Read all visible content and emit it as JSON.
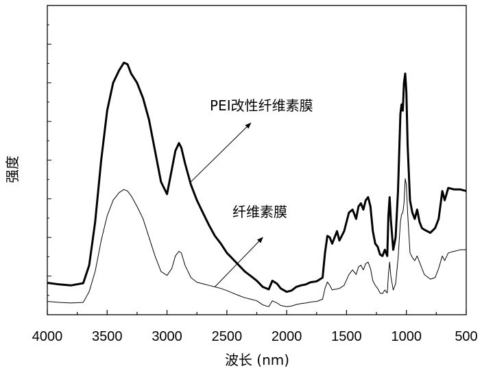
{
  "chart_data": {
    "type": "line",
    "title": "",
    "xlabel": "波长 (nm)",
    "ylabel": "强度",
    "xlim": [
      4000,
      500
    ],
    "x_reversed": true,
    "x_ticks": [
      4000,
      3500,
      3000,
      2500,
      2000,
      1500,
      1000,
      500
    ],
    "x_tick_labels": [
      "4000",
      "3500",
      "3000",
      "2500",
      "2000",
      "1500",
      "1000",
      "500"
    ],
    "ylim": [
      0,
      100
    ],
    "y_tick_labels_shown": false,
    "grid": false,
    "legend": "none",
    "series": [
      {
        "name": "PEI改性纤维素膜",
        "color": "#000000",
        "points": [
          [
            4000,
            10.3
          ],
          [
            3900,
            9.8
          ],
          [
            3800,
            9.5
          ],
          [
            3700,
            10.2
          ],
          [
            3650,
            16
          ],
          [
            3600,
            30
          ],
          [
            3550,
            50
          ],
          [
            3500,
            66
          ],
          [
            3450,
            75
          ],
          [
            3400,
            79
          ],
          [
            3360,
            81.5
          ],
          [
            3330,
            81
          ],
          [
            3300,
            78
          ],
          [
            3250,
            75
          ],
          [
            3200,
            70
          ],
          [
            3150,
            63
          ],
          [
            3100,
            53
          ],
          [
            3050,
            43
          ],
          [
            3000,
            39
          ],
          [
            2960,
            47
          ],
          [
            2930,
            53
          ],
          [
            2900,
            55.5
          ],
          [
            2880,
            54
          ],
          [
            2850,
            49
          ],
          [
            2800,
            42
          ],
          [
            2750,
            37
          ],
          [
            2700,
            33
          ],
          [
            2650,
            29
          ],
          [
            2600,
            25.5
          ],
          [
            2550,
            23
          ],
          [
            2500,
            20
          ],
          [
            2450,
            18
          ],
          [
            2400,
            16
          ],
          [
            2350,
            14
          ],
          [
            2300,
            12.5
          ],
          [
            2250,
            11
          ],
          [
            2200,
            9
          ],
          [
            2150,
            8.2
          ],
          [
            2120,
            11
          ],
          [
            2080,
            10
          ],
          [
            2050,
            8.5
          ],
          [
            2000,
            7.4
          ],
          [
            1960,
            7.8
          ],
          [
            1920,
            9
          ],
          [
            1880,
            9.5
          ],
          [
            1840,
            9.8
          ],
          [
            1800,
            10.5
          ],
          [
            1750,
            10.8
          ],
          [
            1700,
            12
          ],
          [
            1680,
            20
          ],
          [
            1660,
            25.5
          ],
          [
            1640,
            25
          ],
          [
            1620,
            23
          ],
          [
            1600,
            25
          ],
          [
            1580,
            27
          ],
          [
            1560,
            24
          ],
          [
            1520,
            27
          ],
          [
            1480,
            33
          ],
          [
            1450,
            34
          ],
          [
            1420,
            31
          ],
          [
            1400,
            35
          ],
          [
            1380,
            36
          ],
          [
            1360,
            34
          ],
          [
            1340,
            37
          ],
          [
            1320,
            38
          ],
          [
            1300,
            35
          ],
          [
            1280,
            27
          ],
          [
            1260,
            23
          ],
          [
            1240,
            22
          ],
          [
            1220,
            19.5
          ],
          [
            1200,
            19
          ],
          [
            1180,
            21
          ],
          [
            1160,
            19
          ],
          [
            1150,
            32
          ],
          [
            1140,
            38
          ],
          [
            1130,
            31
          ],
          [
            1110,
            21
          ],
          [
            1090,
            25
          ],
          [
            1070,
            40
          ],
          [
            1050,
            65
          ],
          [
            1040,
            68
          ],
          [
            1030,
            66
          ],
          [
            1020,
            75
          ],
          [
            1010,
            78
          ],
          [
            1000,
            72
          ],
          [
            990,
            55
          ],
          [
            970,
            37
          ],
          [
            950,
            33
          ],
          [
            930,
            31
          ],
          [
            910,
            34
          ],
          [
            890,
            30
          ],
          [
            870,
            28
          ],
          [
            850,
            27.5
          ],
          [
            800,
            26.5
          ],
          [
            760,
            28
          ],
          [
            730,
            31
          ],
          [
            700,
            40
          ],
          [
            680,
            37
          ],
          [
            650,
            41
          ],
          [
            600,
            40.5
          ],
          [
            550,
            40.5
          ],
          [
            500,
            40
          ]
        ]
      },
      {
        "name": "纤维素膜",
        "color": "#000000",
        "points": [
          [
            4000,
            4.3
          ],
          [
            3900,
            4
          ],
          [
            3800,
            3.8
          ],
          [
            3700,
            4
          ],
          [
            3650,
            7.5
          ],
          [
            3600,
            14
          ],
          [
            3550,
            24
          ],
          [
            3500,
            32
          ],
          [
            3450,
            37
          ],
          [
            3400,
            39.5
          ],
          [
            3360,
            40.5
          ],
          [
            3330,
            40
          ],
          [
            3300,
            38.5
          ],
          [
            3250,
            35
          ],
          [
            3200,
            31
          ],
          [
            3150,
            25
          ],
          [
            3100,
            19
          ],
          [
            3050,
            14
          ],
          [
            3000,
            12.7
          ],
          [
            2960,
            15
          ],
          [
            2930,
            19
          ],
          [
            2900,
            20.5
          ],
          [
            2880,
            20
          ],
          [
            2850,
            16
          ],
          [
            2800,
            12
          ],
          [
            2750,
            10.5
          ],
          [
            2700,
            10
          ],
          [
            2650,
            9.5
          ],
          [
            2600,
            9
          ],
          [
            2550,
            8.5
          ],
          [
            2500,
            7.8
          ],
          [
            2450,
            7
          ],
          [
            2400,
            6.2
          ],
          [
            2350,
            5.5
          ],
          [
            2300,
            5
          ],
          [
            2250,
            4.5
          ],
          [
            2200,
            3.2
          ],
          [
            2150,
            2.6
          ],
          [
            2120,
            4.5
          ],
          [
            2080,
            3.8
          ],
          [
            2050,
            3
          ],
          [
            2000,
            2.6
          ],
          [
            1960,
            2.8
          ],
          [
            1920,
            3.3
          ],
          [
            1880,
            3.6
          ],
          [
            1840,
            3.8
          ],
          [
            1800,
            4.1
          ],
          [
            1750,
            4.3
          ],
          [
            1700,
            5
          ],
          [
            1680,
            8.5
          ],
          [
            1660,
            10.6
          ],
          [
            1640,
            9.5
          ],
          [
            1620,
            8
          ],
          [
            1600,
            8.2
          ],
          [
            1560,
            8.5
          ],
          [
            1520,
            9.5
          ],
          [
            1480,
            13
          ],
          [
            1450,
            14.5
          ],
          [
            1420,
            13
          ],
          [
            1400,
            15.5
          ],
          [
            1380,
            16
          ],
          [
            1360,
            14.5
          ],
          [
            1340,
            16.5
          ],
          [
            1320,
            17
          ],
          [
            1300,
            15
          ],
          [
            1280,
            11
          ],
          [
            1260,
            9.5
          ],
          [
            1240,
            8.5
          ],
          [
            1220,
            7
          ],
          [
            1200,
            6.8
          ],
          [
            1180,
            8
          ],
          [
            1160,
            7
          ],
          [
            1150,
            13
          ],
          [
            1140,
            17
          ],
          [
            1130,
            12.5
          ],
          [
            1110,
            8
          ],
          [
            1090,
            10
          ],
          [
            1070,
            18
          ],
          [
            1050,
            30
          ],
          [
            1040,
            32.5
          ],
          [
            1030,
            33
          ],
          [
            1020,
            36
          ],
          [
            1010,
            44
          ],
          [
            1000,
            42
          ],
          [
            990,
            33
          ],
          [
            970,
            20
          ],
          [
            950,
            18.5
          ],
          [
            930,
            17.5
          ],
          [
            910,
            19
          ],
          [
            890,
            17
          ],
          [
            870,
            15
          ],
          [
            850,
            13
          ],
          [
            800,
            11.5
          ],
          [
            760,
            12
          ],
          [
            730,
            15
          ],
          [
            700,
            19
          ],
          [
            680,
            17.5
          ],
          [
            650,
            20
          ],
          [
            600,
            20.5
          ],
          [
            550,
            21
          ],
          [
            500,
            21
          ]
        ]
      }
    ],
    "annotations": [
      {
        "text": "PEI改性纤维素膜",
        "arrow_from": [
          2800,
          43
        ],
        "arrow_to": [
          2300,
          62
        ]
      },
      {
        "text": "纤维素膜",
        "arrow_from": [
          2600,
          9
        ],
        "arrow_to": [
          2200,
          25
        ]
      }
    ]
  }
}
